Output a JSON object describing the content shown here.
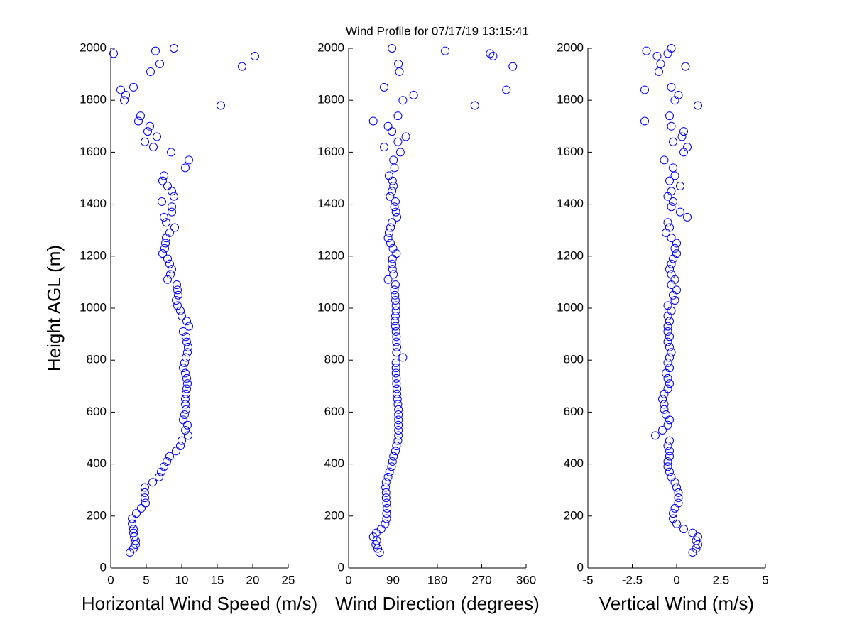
{
  "chart_data": [
    {
      "type": "scatter",
      "title": "Wind Profile for  07/17/19 13:15:41",
      "xlabel": "Horizontal Wind Speed (m/s)",
      "ylabel": "Height AGL (m)",
      "color": "#0000ff",
      "xlim": [
        0,
        25
      ],
      "xticks": [
        0,
        5,
        10,
        15,
        20,
        25
      ],
      "ylim": [
        0,
        2000
      ],
      "yticks": [
        0,
        200,
        400,
        600,
        800,
        1000,
        1200,
        1400,
        1600,
        1800,
        2000
      ],
      "x": [
        2.7,
        3.2,
        3.5,
        3.5,
        3.3,
        3.2,
        3.2,
        3.0,
        3.0,
        3.6,
        4.3,
        4.9,
        4.8,
        4.8,
        4.8,
        5.9,
        6.8,
        7.1,
        7.5,
        7.9,
        8.3,
        9.2,
        9.8,
        10.0,
        10.9,
        10.5,
        10.8,
        10.2,
        10.4,
        10.6,
        10.5,
        10.5,
        10.6,
        10.7,
        10.8,
        10.7,
        10.5,
        10.2,
        10.4,
        10.6,
        10.8,
        10.9,
        10.7,
        10.6,
        10.2,
        11.0,
        10.7,
        10.0,
        9.8,
        9.4,
        9.2,
        9.5,
        9.4,
        9.3,
        8.0,
        8.4,
        8.6,
        8.3,
        8.0,
        7.3,
        7.6,
        7.7,
        7.8,
        8.3,
        9.0,
        7.8,
        7.5,
        8.6,
        8.6,
        7.2,
        8.9,
        8.6,
        8.0,
        7.3,
        7.5,
        10.5,
        11.0,
        8.5,
        6.0,
        4.8,
        6.5,
        5.2,
        5.5,
        3.9,
        4.2,
        15.5,
        1.9,
        2.1,
        1.4,
        3.2,
        5.6,
        18.5,
        6.9,
        20.3,
        0.4,
        6.3,
        8.9
      ],
      "y": [
        60,
        75,
        90,
        105,
        120,
        135,
        150,
        170,
        190,
        210,
        230,
        250,
        270,
        290,
        310,
        330,
        350,
        370,
        390,
        410,
        430,
        450,
        470,
        490,
        510,
        530,
        550,
        570,
        590,
        610,
        630,
        650,
        670,
        690,
        710,
        730,
        750,
        770,
        790,
        810,
        830,
        850,
        870,
        890,
        910,
        930,
        950,
        970,
        990,
        1010,
        1030,
        1050,
        1070,
        1090,
        1110,
        1130,
        1150,
        1170,
        1190,
        1210,
        1230,
        1250,
        1270,
        1290,
        1310,
        1330,
        1350,
        1370,
        1390,
        1410,
        1430,
        1450,
        1470,
        1490,
        1510,
        1540,
        1570,
        1600,
        1620,
        1640,
        1660,
        1680,
        1700,
        1720,
        1740,
        1780,
        1800,
        1820,
        1840,
        1850,
        1910,
        1930,
        1940,
        1970,
        1980,
        1990,
        2000
      ]
    },
    {
      "type": "scatter",
      "xlabel": "Wind Direction (degrees)",
      "color": "#0000ff",
      "xlim": [
        0,
        360
      ],
      "xticks": [
        0,
        90,
        180,
        270,
        360
      ],
      "ylim": [
        0,
        2000
      ],
      "yticks": [
        0,
        200,
        400,
        600,
        800,
        1000,
        1200,
        1400,
        1600,
        1800,
        2000
      ],
      "x": [
        63,
        59,
        55,
        57,
        50,
        56,
        66,
        74,
        77,
        77,
        78,
        77,
        76,
        76,
        75,
        76,
        80,
        83,
        87,
        89,
        91,
        95,
        97,
        100,
        101,
        101,
        101,
        101,
        101,
        101,
        100,
        99,
        98,
        98,
        97,
        97,
        96,
        96,
        96,
        110,
        97,
        98,
        97,
        97,
        96,
        95,
        94,
        95,
        96,
        96,
        95,
        94,
        93,
        95,
        80,
        91,
        89,
        88,
        89,
        97,
        90,
        85,
        80,
        82,
        85,
        88,
        98,
        96,
        93,
        95,
        84,
        88,
        91,
        89,
        82,
        93,
        91,
        105,
        72,
        100,
        116,
        88,
        80,
        50,
        100,
        256,
        110,
        132,
        320,
        72,
        103,
        333,
        101,
        293,
        287,
        196,
        88
      ],
      "y": [
        60,
        75,
        90,
        105,
        120,
        135,
        150,
        170,
        190,
        210,
        230,
        250,
        270,
        290,
        310,
        330,
        350,
        370,
        390,
        410,
        430,
        450,
        470,
        490,
        510,
        530,
        550,
        570,
        590,
        610,
        630,
        650,
        670,
        690,
        710,
        730,
        750,
        770,
        790,
        810,
        830,
        850,
        870,
        890,
        910,
        930,
        950,
        970,
        990,
        1010,
        1030,
        1050,
        1070,
        1090,
        1110,
        1130,
        1150,
        1170,
        1190,
        1210,
        1230,
        1250,
        1270,
        1290,
        1310,
        1330,
        1350,
        1370,
        1390,
        1410,
        1430,
        1450,
        1470,
        1490,
        1510,
        1540,
        1570,
        1600,
        1620,
        1640,
        1660,
        1680,
        1700,
        1720,
        1740,
        1780,
        1800,
        1820,
        1840,
        1850,
        1910,
        1930,
        1940,
        1970,
        1980,
        1990,
        2000
      ]
    },
    {
      "type": "scatter",
      "xlabel": "Vertical Wind (m/s)",
      "color": "#0000ff",
      "xlim": [
        -5,
        5
      ],
      "xticks": [
        -5,
        -2.5,
        0,
        2.5,
        5
      ],
      "ylim": [
        0,
        2000
      ],
      "yticks": [
        0,
        200,
        400,
        600,
        800,
        1000,
        1200,
        1400,
        1600,
        1800,
        2000
      ],
      "x": [
        0.9,
        1.1,
        1.2,
        1.1,
        1.2,
        0.9,
        0.4,
        0.0,
        -0.2,
        -0.2,
        -0.1,
        0.1,
        0.1,
        0.1,
        0.0,
        -0.1,
        -0.3,
        -0.4,
        -0.5,
        -0.5,
        -0.4,
        -0.4,
        -0.5,
        -0.4,
        -1.2,
        -0.8,
        -0.5,
        -0.4,
        -0.6,
        -0.7,
        -0.7,
        -0.8,
        -0.7,
        -0.5,
        -0.4,
        -0.5,
        -0.6,
        -0.4,
        -0.5,
        -0.4,
        -0.3,
        -0.4,
        -0.5,
        -0.4,
        -0.5,
        -0.5,
        -0.4,
        -0.5,
        -0.3,
        -0.5,
        -0.1,
        -0.2,
        0.0,
        -0.3,
        -0.1,
        -0.3,
        -0.4,
        -0.3,
        -0.2,
        0.0,
        -0.1,
        0.0,
        -0.3,
        -0.6,
        -0.4,
        -0.5,
        0.6,
        0.2,
        -0.3,
        -0.2,
        -0.5,
        -0.3,
        0.2,
        -0.4,
        -0.1,
        -0.2,
        -0.7,
        0.4,
        0.6,
        -0.2,
        0.3,
        0.4,
        -0.3,
        -1.8,
        -0.4,
        1.2,
        -0.1,
        0.1,
        -1.8,
        -0.3,
        -1.0,
        0.5,
        -0.9,
        -1.1,
        -0.5,
        -1.7,
        -0.3
      ],
      "y": [
        60,
        75,
        90,
        105,
        120,
        135,
        150,
        170,
        190,
        210,
        230,
        250,
        270,
        290,
        310,
        330,
        350,
        370,
        390,
        410,
        430,
        450,
        470,
        490,
        510,
        530,
        550,
        570,
        590,
        610,
        630,
        650,
        670,
        690,
        710,
        730,
        750,
        770,
        790,
        810,
        830,
        850,
        870,
        890,
        910,
        930,
        950,
        970,
        990,
        1010,
        1030,
        1050,
        1070,
        1090,
        1110,
        1130,
        1150,
        1170,
        1190,
        1210,
        1230,
        1250,
        1270,
        1290,
        1310,
        1330,
        1350,
        1370,
        1390,
        1410,
        1430,
        1450,
        1470,
        1490,
        1510,
        1540,
        1570,
        1600,
        1620,
        1640,
        1660,
        1680,
        1700,
        1720,
        1740,
        1780,
        1800,
        1820,
        1840,
        1850,
        1910,
        1930,
        1940,
        1970,
        1980,
        1990,
        2000
      ]
    }
  ]
}
